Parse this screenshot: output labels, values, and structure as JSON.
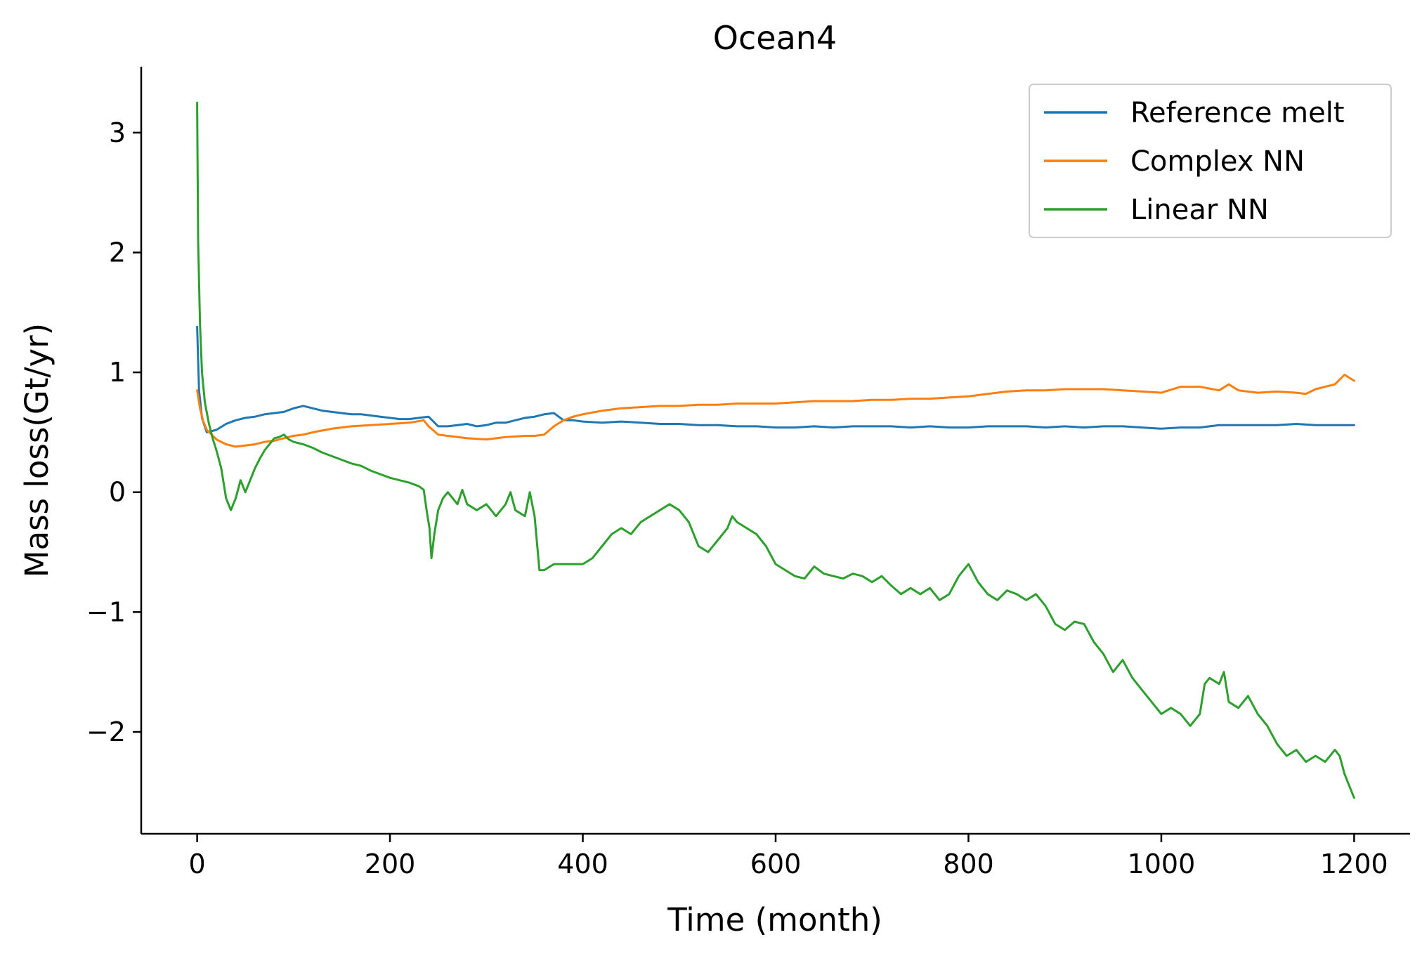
{
  "chart_data": {
    "type": "line",
    "title": "Ocean4",
    "xlabel": "Time (month)",
    "ylabel": "Mass loss(Gt/yr)",
    "xlim": [
      -58,
      1258
    ],
    "ylim": [
      -2.85,
      3.55
    ],
    "xticks": [
      0,
      200,
      400,
      600,
      800,
      1000,
      1200
    ],
    "yticks": [
      -2,
      -1,
      0,
      1,
      2,
      3
    ],
    "ytick_labels": [
      "−2",
      "−1",
      "0",
      "1",
      "2",
      "3"
    ],
    "grid": false,
    "legend_position": "top-right",
    "series": [
      {
        "name": "Reference melt",
        "color": "#1f77b4",
        "x": [
          0,
          2,
          5,
          10,
          20,
          30,
          40,
          50,
          60,
          70,
          80,
          90,
          100,
          110,
          120,
          130,
          140,
          150,
          160,
          170,
          180,
          190,
          200,
          210,
          220,
          230,
          240,
          250,
          260,
          270,
          280,
          290,
          300,
          310,
          320,
          330,
          340,
          350,
          360,
          370,
          380,
          390,
          400,
          420,
          440,
          460,
          480,
          500,
          520,
          540,
          560,
          580,
          600,
          620,
          640,
          660,
          680,
          700,
          720,
          740,
          760,
          780,
          800,
          820,
          840,
          860,
          880,
          900,
          920,
          940,
          960,
          980,
          1000,
          1020,
          1040,
          1060,
          1080,
          1100,
          1120,
          1140,
          1160,
          1180,
          1200
        ],
        "y": [
          1.38,
          0.85,
          0.62,
          0.5,
          0.52,
          0.57,
          0.6,
          0.62,
          0.63,
          0.65,
          0.66,
          0.67,
          0.7,
          0.72,
          0.7,
          0.68,
          0.67,
          0.66,
          0.65,
          0.65,
          0.64,
          0.63,
          0.62,
          0.61,
          0.61,
          0.62,
          0.63,
          0.55,
          0.55,
          0.56,
          0.57,
          0.55,
          0.56,
          0.58,
          0.58,
          0.6,
          0.62,
          0.63,
          0.65,
          0.66,
          0.6,
          0.6,
          0.59,
          0.58,
          0.59,
          0.58,
          0.57,
          0.57,
          0.56,
          0.56,
          0.55,
          0.55,
          0.54,
          0.54,
          0.55,
          0.54,
          0.55,
          0.55,
          0.55,
          0.54,
          0.55,
          0.54,
          0.54,
          0.55,
          0.55,
          0.55,
          0.54,
          0.55,
          0.54,
          0.55,
          0.55,
          0.54,
          0.53,
          0.54,
          0.54,
          0.56,
          0.56,
          0.56,
          0.56,
          0.57,
          0.56,
          0.56,
          0.56
        ]
      },
      {
        "name": "Complex NN",
        "color": "#ff7f0e",
        "x": [
          0,
          3,
          6,
          10,
          15,
          20,
          30,
          40,
          50,
          60,
          70,
          80,
          90,
          100,
          110,
          120,
          140,
          160,
          180,
          200,
          220,
          235,
          240,
          250,
          260,
          280,
          300,
          320,
          340,
          350,
          360,
          370,
          380,
          390,
          400,
          420,
          440,
          460,
          480,
          500,
          520,
          540,
          560,
          580,
          600,
          620,
          640,
          660,
          680,
          700,
          720,
          740,
          760,
          780,
          800,
          820,
          840,
          860,
          880,
          900,
          920,
          940,
          960,
          980,
          1000,
          1020,
          1040,
          1060,
          1070,
          1080,
          1100,
          1120,
          1140,
          1150,
          1160,
          1170,
          1180,
          1190,
          1200
        ],
        "y": [
          0.85,
          0.7,
          0.6,
          0.52,
          0.48,
          0.44,
          0.4,
          0.38,
          0.39,
          0.4,
          0.42,
          0.43,
          0.45,
          0.47,
          0.48,
          0.5,
          0.53,
          0.55,
          0.56,
          0.57,
          0.58,
          0.6,
          0.55,
          0.48,
          0.47,
          0.45,
          0.44,
          0.46,
          0.47,
          0.47,
          0.48,
          0.55,
          0.6,
          0.63,
          0.65,
          0.68,
          0.7,
          0.71,
          0.72,
          0.72,
          0.73,
          0.73,
          0.74,
          0.74,
          0.74,
          0.75,
          0.76,
          0.76,
          0.76,
          0.77,
          0.77,
          0.78,
          0.78,
          0.79,
          0.8,
          0.82,
          0.84,
          0.85,
          0.85,
          0.86,
          0.86,
          0.86,
          0.85,
          0.84,
          0.83,
          0.88,
          0.88,
          0.85,
          0.9,
          0.85,
          0.83,
          0.84,
          0.83,
          0.82,
          0.86,
          0.88,
          0.9,
          0.98,
          0.93
        ]
      },
      {
        "name": "Linear NN",
        "color": "#2ca02c",
        "x": [
          0,
          1,
          3,
          5,
          8,
          12,
          16,
          20,
          25,
          30,
          35,
          40,
          45,
          50,
          55,
          60,
          65,
          70,
          75,
          80,
          85,
          90,
          95,
          100,
          110,
          120,
          130,
          140,
          150,
          160,
          170,
          180,
          190,
          200,
          210,
          220,
          230,
          235,
          238,
          241,
          243,
          246,
          250,
          255,
          260,
          265,
          270,
          275,
          280,
          290,
          300,
          310,
          320,
          325,
          330,
          340,
          345,
          350,
          355,
          360,
          370,
          380,
          390,
          400,
          410,
          420,
          430,
          440,
          450,
          460,
          470,
          480,
          490,
          500,
          510,
          520,
          530,
          540,
          550,
          555,
          560,
          570,
          580,
          590,
          600,
          610,
          620,
          630,
          640,
          650,
          660,
          670,
          680,
          690,
          700,
          710,
          720,
          730,
          740,
          750,
          760,
          770,
          780,
          790,
          800,
          810,
          820,
          830,
          840,
          850,
          860,
          870,
          880,
          890,
          900,
          910,
          920,
          930,
          940,
          950,
          960,
          970,
          980,
          990,
          1000,
          1010,
          1020,
          1030,
          1040,
          1045,
          1050,
          1060,
          1065,
          1070,
          1080,
          1090,
          1100,
          1110,
          1120,
          1130,
          1140,
          1150,
          1160,
          1170,
          1180,
          1185,
          1190,
          1195,
          1200
        ],
        "y": [
          3.25,
          2.1,
          1.4,
          1.0,
          0.75,
          0.58,
          0.45,
          0.35,
          0.2,
          -0.05,
          -0.15,
          -0.05,
          0.1,
          0.0,
          0.1,
          0.2,
          0.28,
          0.35,
          0.4,
          0.45,
          0.46,
          0.48,
          0.44,
          0.42,
          0.4,
          0.37,
          0.33,
          0.3,
          0.27,
          0.24,
          0.22,
          0.18,
          0.15,
          0.12,
          0.1,
          0.08,
          0.05,
          0.02,
          -0.15,
          -0.3,
          -0.55,
          -0.35,
          -0.15,
          -0.05,
          0.0,
          -0.05,
          -0.1,
          0.02,
          -0.1,
          -0.15,
          -0.1,
          -0.2,
          -0.1,
          0.0,
          -0.15,
          -0.2,
          0.0,
          -0.2,
          -0.65,
          -0.65,
          -0.6,
          -0.6,
          -0.6,
          -0.6,
          -0.55,
          -0.45,
          -0.35,
          -0.3,
          -0.35,
          -0.25,
          -0.2,
          -0.15,
          -0.1,
          -0.15,
          -0.25,
          -0.45,
          -0.5,
          -0.4,
          -0.3,
          -0.2,
          -0.25,
          -0.3,
          -0.35,
          -0.45,
          -0.6,
          -0.65,
          -0.7,
          -0.72,
          -0.62,
          -0.68,
          -0.7,
          -0.72,
          -0.68,
          -0.7,
          -0.75,
          -0.7,
          -0.78,
          -0.85,
          -0.8,
          -0.85,
          -0.8,
          -0.9,
          -0.85,
          -0.7,
          -0.6,
          -0.75,
          -0.85,
          -0.9,
          -0.82,
          -0.85,
          -0.9,
          -0.85,
          -0.95,
          -1.1,
          -1.15,
          -1.08,
          -1.1,
          -1.25,
          -1.35,
          -1.5,
          -1.4,
          -1.55,
          -1.65,
          -1.75,
          -1.85,
          -1.8,
          -1.85,
          -1.95,
          -1.85,
          -1.6,
          -1.55,
          -1.6,
          -1.5,
          -1.75,
          -1.8,
          -1.7,
          -1.85,
          -1.95,
          -2.1,
          -2.2,
          -2.15,
          -2.25,
          -2.2,
          -2.25,
          -2.15,
          -2.2,
          -2.35,
          -2.45,
          -2.55
        ]
      }
    ]
  }
}
